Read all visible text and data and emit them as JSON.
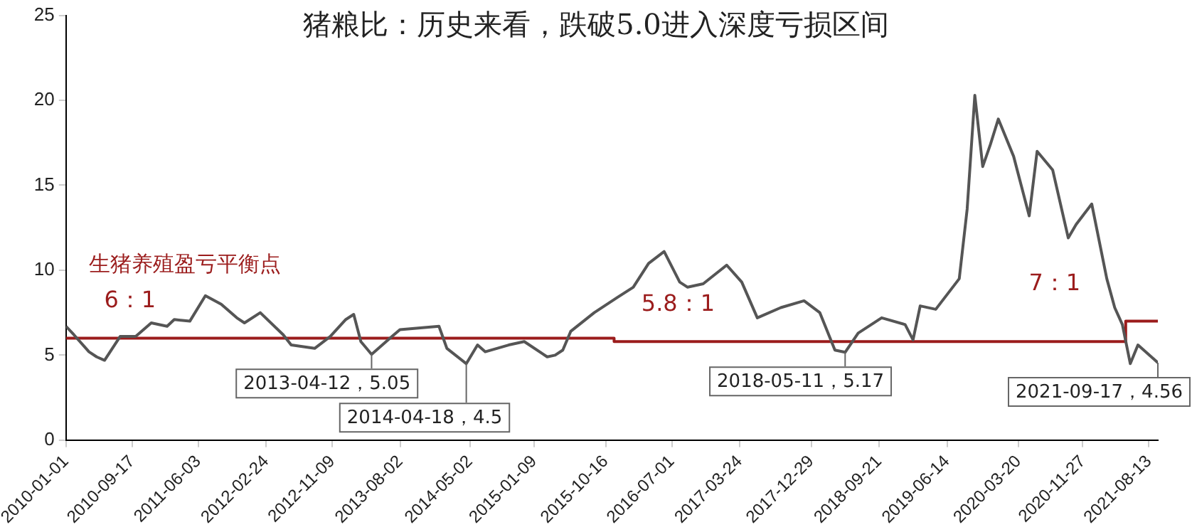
{
  "chart_data": {
    "type": "line",
    "title": "猪粮比：历史来看，跌破5.0进入深度亏损区间",
    "series": [
      {
        "type": "line",
        "color": "#555555",
        "x": [
          "2010-01",
          "2010-02",
          "2010-04",
          "2010-05",
          "2010-06",
          "2010-08",
          "2010-10",
          "2010-12",
          "2011-02",
          "2011-03",
          "2011-05",
          "2011-07",
          "2011-09",
          "2011-11",
          "2011-12",
          "2012-02",
          "2012-05",
          "2012-06",
          "2012-09",
          "2012-11",
          "2013-01",
          "2013-02",
          "2013-03",
          "2013-04-12",
          "2013-07",
          "2013-08",
          "2014-01",
          "2014-02",
          "2014-04-18",
          "2014-06",
          "2014-07",
          "2014-10",
          "2014-12",
          "2015-03",
          "2015-04",
          "2015-05",
          "2015-06",
          "2015-09",
          "2015-12",
          "2016-02",
          "2016-04",
          "2016-06",
          "2016-08",
          "2016-09",
          "2016-11",
          "2017-02",
          "2017-04",
          "2017-06",
          "2017-09",
          "2017-12",
          "2018-02",
          "2018-04",
          "2018-05-11",
          "2018-07",
          "2018-10",
          "2019-01",
          "2019-02",
          "2019-03",
          "2019-05",
          "2019-08",
          "2019-09",
          "2019-10",
          "2019-11",
          "2019-12",
          "2020-01",
          "2020-03",
          "2020-05",
          "2020-06",
          "2020-08",
          "2020-10",
          "2020-11",
          "2021-01",
          "2021-03",
          "2021-04",
          "2021-05",
          "2021-06",
          "2021-07",
          "2021-09-17"
        ],
        "values": [
          6.7,
          6.2,
          5.2,
          4.9,
          4.7,
          6.1,
          6.1,
          6.9,
          6.7,
          7.1,
          7.0,
          8.5,
          8.0,
          7.2,
          6.9,
          7.5,
          6.2,
          5.6,
          5.4,
          6.1,
          7.1,
          7.4,
          5.8,
          5.05,
          6.1,
          6.5,
          6.7,
          5.4,
          4.5,
          5.6,
          5.2,
          5.6,
          5.8,
          4.9,
          5.0,
          5.3,
          6.4,
          7.5,
          8.4,
          9.0,
          10.4,
          11.1,
          9.3,
          9.0,
          9.2,
          10.3,
          9.3,
          7.2,
          7.8,
          8.2,
          7.5,
          5.3,
          5.17,
          6.3,
          7.2,
          6.8,
          5.9,
          7.9,
          7.7,
          9.5,
          13.6,
          20.3,
          16.1,
          17.4,
          18.9,
          16.7,
          13.2,
          17.0,
          15.9,
          11.9,
          12.7,
          13.9,
          9.5,
          7.8,
          6.8,
          4.5,
          5.6,
          4.56
        ]
      },
      {
        "type": "step",
        "color": "#9b1c1c",
        "x": [
          "2010-01-01",
          "2015-11-18",
          "2021-05-14",
          "2021-09-17"
        ],
        "values": [
          6,
          5.8,
          7,
          7
        ]
      }
    ],
    "xlim": [
      "2010-01-01",
      "2021-09-17"
    ],
    "xticks": [
      "2010-01-01",
      "2010-09-17",
      "2011-06-03",
      "2012-02-24",
      "2012-11-09",
      "2013-08-02",
      "2014-05-02",
      "2015-01-09",
      "2015-10-16",
      "2016-07-01",
      "2017-03-24",
      "2017-12-29",
      "2018-09-21",
      "2019-06-14",
      "2020-03-20",
      "2020-11-27",
      "2021-08-13"
    ],
    "ylim": [
      0,
      25
    ],
    "yticks": [
      0,
      5,
      10,
      15,
      20,
      25
    ],
    "grid": false,
    "legend": false,
    "marker": "none",
    "line_style": "solid",
    "annotations": [
      {
        "text": "生猪养殖盈亏平衡点"
      },
      {
        "text": "6：1",
        "x": "2010-01-01",
        "y": 6
      },
      {
        "text": "5.8：1",
        "x": "2015-11-18",
        "y": 5.8
      },
      {
        "text": "7：1",
        "x": "2021-05-14",
        "y": 7
      },
      {
        "text": "2013-04-12，5.05",
        "x": "2013-04-12",
        "y": 5.05
      },
      {
        "text": "2014-04-18，4.5",
        "x": "2014-04-18",
        "y": 4.5
      },
      {
        "text": "2018-05-11，5.17",
        "x": "2018-05-11",
        "y": 5.17
      },
      {
        "text": "2021-09-17，4.56",
        "x": "2021-09-17",
        "y": 4.56
      }
    ]
  }
}
